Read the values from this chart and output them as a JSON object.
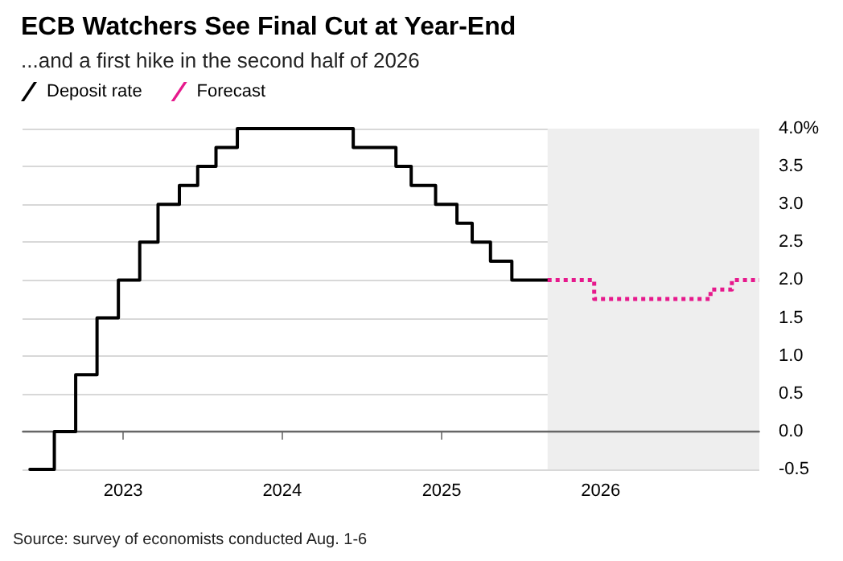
{
  "chart_data": {
    "type": "step",
    "title": "ECB Watchers See Final Cut at Year-End",
    "subtitle": "...and a first hike in the second half of 2026",
    "annotations": [
      "Source: survey of economists conducted Aug. 1-6"
    ],
    "series": [
      {
        "name": "Deposit rate",
        "color": "#000000",
        "line_style": "solid",
        "x": [
          "2022-06-01",
          "2022-07-27",
          "2022-09-14",
          "2022-11-02",
          "2022-12-21",
          "2023-02-08",
          "2023-03-22",
          "2023-05-10",
          "2023-06-21",
          "2023-08-02",
          "2023-09-20",
          "2024-06-12",
          "2024-09-18",
          "2024-10-23",
          "2024-12-18",
          "2025-02-05",
          "2025-03-12",
          "2025-04-23",
          "2025-06-11",
          "2025-09-01"
        ],
        "values": [
          -0.5,
          0,
          0.75,
          1.5,
          2.0,
          2.5,
          3.0,
          3.25,
          3.5,
          3.75,
          4.0,
          3.75,
          3.5,
          3.25,
          3.0,
          2.75,
          2.5,
          2.25,
          2.0,
          2.0
        ]
      },
      {
        "name": "Forecast",
        "color": "#e6198c",
        "line_style": "dotted",
        "x": [
          "2025-09-01",
          "2025-12-17",
          "2026-09-10",
          "2026-10-29",
          "2026-12-31"
        ],
        "values": [
          2.0,
          1.75,
          1.875,
          2.0,
          2.0
        ]
      }
    ],
    "xlim": [
      "2022-05-15",
      "2026-12-31"
    ],
    "xticks": [
      {
        "value": "2023",
        "label": "2023"
      },
      {
        "value": "2024",
        "label": "2024"
      },
      {
        "value": "2025",
        "label": "2025"
      },
      {
        "value": "2026",
        "label": "2026"
      }
    ],
    "ylim": [
      -0.5,
      4.0
    ],
    "yticks": [
      {
        "value": -0.5,
        "label": "-0.5"
      },
      {
        "value": 0,
        "label": "0.0"
      },
      {
        "value": 0.5,
        "label": "0.5"
      },
      {
        "value": 1.0,
        "label": "1.0"
      },
      {
        "value": 1.5,
        "label": "1.5"
      },
      {
        "value": 2.0,
        "label": "2.0"
      },
      {
        "value": 2.5,
        "label": "2.5"
      },
      {
        "value": 3.0,
        "label": "3.0"
      },
      {
        "value": 3.5,
        "label": "3.5"
      },
      {
        "value": 4.0,
        "label": "4.0%"
      }
    ],
    "bands": [
      {
        "axis": "x",
        "from": "2025-09-01",
        "to": "2026-12-31",
        "color": "#eeeeee"
      }
    ],
    "ref_lines": [
      {
        "axis": "y",
        "value": 0,
        "color": "#666666"
      }
    ],
    "grid": "y",
    "legend": "top left",
    "marker": "none"
  }
}
